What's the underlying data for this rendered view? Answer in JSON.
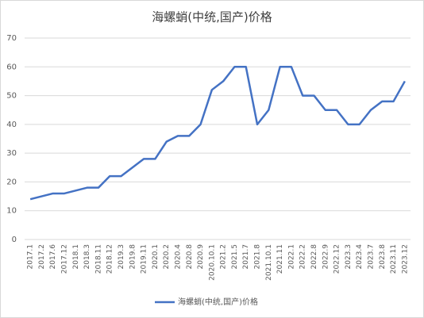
{
  "chart_data": {
    "type": "line",
    "title": "海螺蛸(中统,国产)价格",
    "categories": [
      "2017.1",
      "2017.2",
      "2017.6",
      "2017.12",
      "2018.1",
      "2018.3",
      "2018.11",
      "2018.12",
      "2019.3",
      "2019.8",
      "2019.11",
      "2020.1",
      "2020.2",
      "2020.4",
      "2020.8",
      "2020.9",
      "2020.10.1",
      "2021.2",
      "2021.5",
      "2021.7",
      "2021.8",
      "2021.10.1",
      "2021.11",
      "2022.1",
      "2022.2",
      "2022.8",
      "2022.9",
      "2022.12",
      "2023.3",
      "2023.4",
      "2023.7",
      "2023.8",
      "2023.11",
      "2023.12"
    ],
    "series": [
      {
        "name": "海螺蛸(中统,国产)价格",
        "color": "#4472c4",
        "values": [
          14,
          15,
          16,
          16,
          17,
          18,
          18,
          22,
          22,
          25,
          28,
          28,
          34,
          36,
          36,
          40,
          52,
          55,
          60,
          60,
          40,
          45,
          60,
          60,
          50,
          50,
          45,
          45,
          40,
          40,
          45,
          48,
          48,
          55
        ]
      }
    ],
    "ylim": [
      0,
      70
    ],
    "yticks": [
      0,
      10,
      20,
      30,
      40,
      50,
      60,
      70
    ],
    "grid": true,
    "legend": "bottom"
  }
}
